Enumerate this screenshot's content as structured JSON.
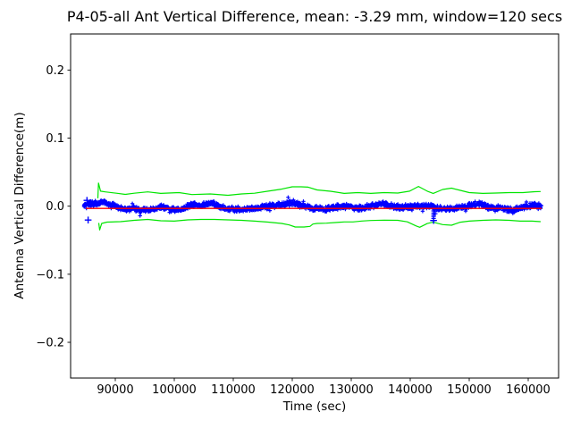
{
  "chart_data": {
    "type": "scatter+line",
    "title": "P4-05-all Ant Vertical Difference, mean: -3.29 mm, window=120 secs",
    "xlabel": "Time (sec)",
    "ylabel": "Antenna Vertical Difference(m)",
    "xlim": [
      82424,
      165152
    ],
    "ylim": [
      -0.2525,
      0.253
    ],
    "grid": false,
    "legend": null,
    "background": "#ffffff",
    "axis_color": "#000000",
    "mean_mm": -3.29,
    "window_secs": 120,
    "xticks": [
      {
        "v": 90000,
        "label": "90000"
      },
      {
        "v": 100000,
        "label": "100000"
      },
      {
        "v": 110000,
        "label": "110000"
      },
      {
        "v": 120000,
        "label": "120000"
      },
      {
        "v": 130000,
        "label": "130000"
      },
      {
        "v": 140000,
        "label": "140000"
      },
      {
        "v": 150000,
        "label": "150000"
      },
      {
        "v": 160000,
        "label": "160000"
      }
    ],
    "yticks": [
      {
        "v": 0.2,
        "label": "0.2"
      },
      {
        "v": 0.1,
        "label": "0.1"
      },
      {
        "v": 0.0,
        "label": "0.0"
      },
      {
        "v": -0.1,
        "label": "−0.1"
      },
      {
        "v": -0.2,
        "label": "−0.2"
      }
    ],
    "series": {
      "measurement": {
        "name": "antenna-vertical-difference",
        "marker": "+",
        "color": "#0000ff",
        "t_start": 84700,
        "t_end": 162270,
        "sample_step": 100,
        "noise_halfwidth": 0.0032,
        "center": [
          [
            84700,
            0.002
          ],
          [
            85600,
            0.004
          ],
          [
            86400,
            0.003
          ],
          [
            87100,
            0.004
          ],
          [
            88200,
            0.006
          ],
          [
            89100,
            0.002
          ],
          [
            90200,
            -0.001
          ],
          [
            91700,
            -0.004
          ],
          [
            93200,
            -0.004
          ],
          [
            94700,
            -0.006
          ],
          [
            96200,
            -0.005
          ],
          [
            97400,
            -0.002
          ],
          [
            98200,
            -0.001
          ],
          [
            99200,
            -0.005
          ],
          [
            100800,
            -0.005
          ],
          [
            102300,
            -0.001
          ],
          [
            103500,
            0.003
          ],
          [
            104500,
            0.001
          ],
          [
            105600,
            0.003
          ],
          [
            106500,
            0.005
          ],
          [
            107600,
            -0.001
          ],
          [
            108600,
            -0.003
          ],
          [
            110200,
            -0.005
          ],
          [
            111700,
            -0.005
          ],
          [
            112900,
            -0.004
          ],
          [
            114400,
            -0.002
          ],
          [
            115900,
            -0.001
          ],
          [
            117100,
            0.002
          ],
          [
            118200,
            0.003
          ],
          [
            119200,
            0.004
          ],
          [
            120200,
            0.005
          ],
          [
            121200,
            0.002
          ],
          [
            122300,
            0.0
          ],
          [
            123500,
            -0.003
          ],
          [
            124700,
            -0.003
          ],
          [
            125800,
            -0.004
          ],
          [
            126800,
            -0.002
          ],
          [
            128000,
            -0.001
          ],
          [
            129100,
            0.0
          ],
          [
            130300,
            -0.002
          ],
          [
            131400,
            -0.003
          ],
          [
            132600,
            -0.001
          ],
          [
            133800,
            0.001
          ],
          [
            134900,
            0.004
          ],
          [
            135900,
            0.003
          ],
          [
            137100,
            -0.001
          ],
          [
            138300,
            -0.002
          ],
          [
            139600,
            -0.001
          ],
          [
            140800,
            0.0
          ],
          [
            142000,
            -0.001
          ],
          [
            143200,
            0.0
          ],
          [
            143900,
            -0.001
          ],
          [
            145000,
            -0.004
          ],
          [
            146200,
            -0.004
          ],
          [
            147400,
            -0.003
          ],
          [
            148500,
            -0.002
          ],
          [
            149700,
            0.0
          ],
          [
            150800,
            0.002
          ],
          [
            151800,
            0.003
          ],
          [
            153000,
            0.0
          ],
          [
            154100,
            -0.003
          ],
          [
            155300,
            -0.003
          ],
          [
            156500,
            -0.004
          ],
          [
            157600,
            -0.006
          ],
          [
            158600,
            -0.003
          ],
          [
            159900,
            0.0
          ],
          [
            160900,
            0.002
          ],
          [
            161800,
            0.0
          ],
          [
            162270,
            -0.001
          ]
        ],
        "outliers": [
          [
            85200,
            0.0085
          ],
          [
            85400,
            -0.0203
          ],
          [
            143950,
            -0.021
          ]
        ],
        "outlier_streaks": [
          {
            "t": 143950,
            "values": [
              -0.004,
              -0.007,
              -0.01,
              -0.0125,
              -0.015,
              -0.018,
              -0.021
            ]
          },
          {
            "t": 144250,
            "values": [
              -0.005,
              -0.008,
              -0.011
            ]
          }
        ]
      },
      "mean_line": {
        "name": "mean-line",
        "color": "#ff0000",
        "y": -0.00329,
        "t_start": 85000,
        "t_end": 162270
      },
      "upper_bound": {
        "name": "upper-bound",
        "color": "#00e500",
        "points": [
          [
            87050,
            0.0115
          ],
          [
            87150,
            0.034
          ],
          [
            87500,
            0.022
          ],
          [
            88300,
            0.021
          ],
          [
            90200,
            0.019
          ],
          [
            91700,
            0.0173
          ],
          [
            93200,
            0.019
          ],
          [
            95500,
            0.021
          ],
          [
            97700,
            0.0187
          ],
          [
            100800,
            0.02
          ],
          [
            103000,
            0.017
          ],
          [
            106100,
            0.018
          ],
          [
            109100,
            0.016
          ],
          [
            111400,
            0.018
          ],
          [
            113600,
            0.019
          ],
          [
            115900,
            0.022
          ],
          [
            118200,
            0.025
          ],
          [
            120000,
            0.0285
          ],
          [
            121500,
            0.0285
          ],
          [
            122700,
            0.028
          ],
          [
            124200,
            0.0239
          ],
          [
            126500,
            0.0219
          ],
          [
            128800,
            0.0187
          ],
          [
            131100,
            0.02
          ],
          [
            133300,
            0.0187
          ],
          [
            135600,
            0.02
          ],
          [
            137900,
            0.0193
          ],
          [
            139900,
            0.022
          ],
          [
            141400,
            0.029
          ],
          [
            142900,
            0.022
          ],
          [
            143900,
            0.0187
          ],
          [
            145500,
            0.0246
          ],
          [
            147000,
            0.0265
          ],
          [
            148500,
            0.0232
          ],
          [
            150000,
            0.02
          ],
          [
            152300,
            0.0187
          ],
          [
            154500,
            0.0193
          ],
          [
            156800,
            0.02
          ],
          [
            159100,
            0.02
          ],
          [
            161100,
            0.0213
          ],
          [
            162100,
            0.0215
          ]
        ]
      },
      "lower_bound": {
        "name": "lower-bound",
        "color": "#00e500",
        "points": [
          [
            87200,
            -0.0245
          ],
          [
            87350,
            -0.035
          ],
          [
            87700,
            -0.0253
          ],
          [
            88600,
            -0.0234
          ],
          [
            90900,
            -0.0227
          ],
          [
            93200,
            -0.0208
          ],
          [
            95500,
            -0.0194
          ],
          [
            97700,
            -0.0214
          ],
          [
            100000,
            -0.022
          ],
          [
            102300,
            -0.0201
          ],
          [
            104500,
            -0.0194
          ],
          [
            106800,
            -0.0194
          ],
          [
            109100,
            -0.0201
          ],
          [
            111400,
            -0.0208
          ],
          [
            113600,
            -0.022
          ],
          [
            115900,
            -0.0234
          ],
          [
            118200,
            -0.0253
          ],
          [
            119500,
            -0.0276
          ],
          [
            120500,
            -0.0306
          ],
          [
            122000,
            -0.0306
          ],
          [
            123000,
            -0.0297
          ],
          [
            123500,
            -0.0263
          ],
          [
            124200,
            -0.0253
          ],
          [
            125800,
            -0.0249
          ],
          [
            127300,
            -0.024
          ],
          [
            128800,
            -0.0231
          ],
          [
            130300,
            -0.0231
          ],
          [
            131800,
            -0.0218
          ],
          [
            133300,
            -0.021
          ],
          [
            135600,
            -0.0205
          ],
          [
            137900,
            -0.0208
          ],
          [
            139500,
            -0.023
          ],
          [
            141000,
            -0.029
          ],
          [
            141600,
            -0.031
          ],
          [
            142900,
            -0.0255
          ],
          [
            143900,
            -0.0235
          ],
          [
            145500,
            -0.027
          ],
          [
            147000,
            -0.028
          ],
          [
            148500,
            -0.0235
          ],
          [
            150000,
            -0.022
          ],
          [
            152300,
            -0.0208
          ],
          [
            154500,
            -0.0201
          ],
          [
            156800,
            -0.0208
          ],
          [
            158600,
            -0.022
          ],
          [
            160600,
            -0.022
          ],
          [
            162100,
            -0.0227
          ]
        ]
      }
    }
  }
}
